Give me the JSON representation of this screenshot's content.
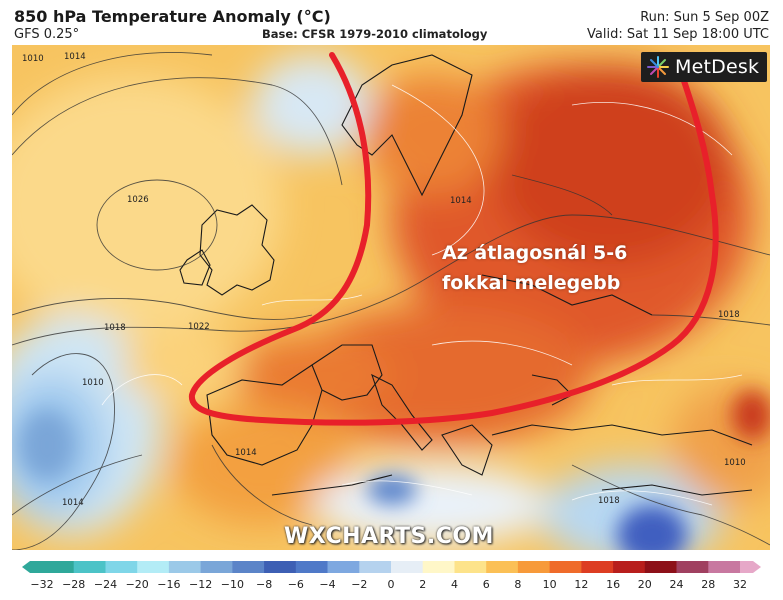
{
  "header": {
    "title": "850 hPa Temperature Anomaly (°C)",
    "model": "GFS 0.25°",
    "base": "Base: CFSR 1979-2010 climatology",
    "run": "Run: Sun 5 Sep 00Z",
    "valid": "Valid: Sat 11 Sep 18:00 UTC"
  },
  "logo": {
    "text": "MetDesk",
    "icon": "metdesk-starburst-icon"
  },
  "annotation": {
    "line1": "Az átlagosnál 5-6",
    "line2": "fokkal melegebb",
    "highlight_color": "#e8202a"
  },
  "watermark": "WXCHARTS.COM",
  "isobars": [
    "1010",
    "1014",
    "1026",
    "1018",
    "1022",
    "1014",
    "1018",
    "1010",
    "1014",
    "1014",
    "1018",
    "1010"
  ],
  "colorbar": {
    "ticks": [
      "−32",
      "−28",
      "−24",
      "−20",
      "−16",
      "−12",
      "−10",
      "−8",
      "−6",
      "−4",
      "−2",
      "0",
      "2",
      "4",
      "6",
      "8",
      "10",
      "12",
      "16",
      "20",
      "24",
      "28",
      "32"
    ],
    "colors": [
      "#2fa89a",
      "#4cc3c7",
      "#7fd6e8",
      "#b3ecf6",
      "#9bc9e8",
      "#7aa6d8",
      "#5b84c8",
      "#3d5fb4",
      "#4f79c8",
      "#7ea8e0",
      "#b5d2ee",
      "#e6eef6",
      "#fff7c8",
      "#fde38a",
      "#fbc056",
      "#f79a3a",
      "#ef6b2a",
      "#dd3d22",
      "#b81e1c",
      "#8d1018",
      "#a04060",
      "#c878a0"
    ]
  },
  "colors": {
    "warm_dark": "#d2441f",
    "warm_mid": "#f39a3c",
    "warm_light": "#fbd27a",
    "cool": "#9ec8ee",
    "sea": "#cfe6f5"
  }
}
